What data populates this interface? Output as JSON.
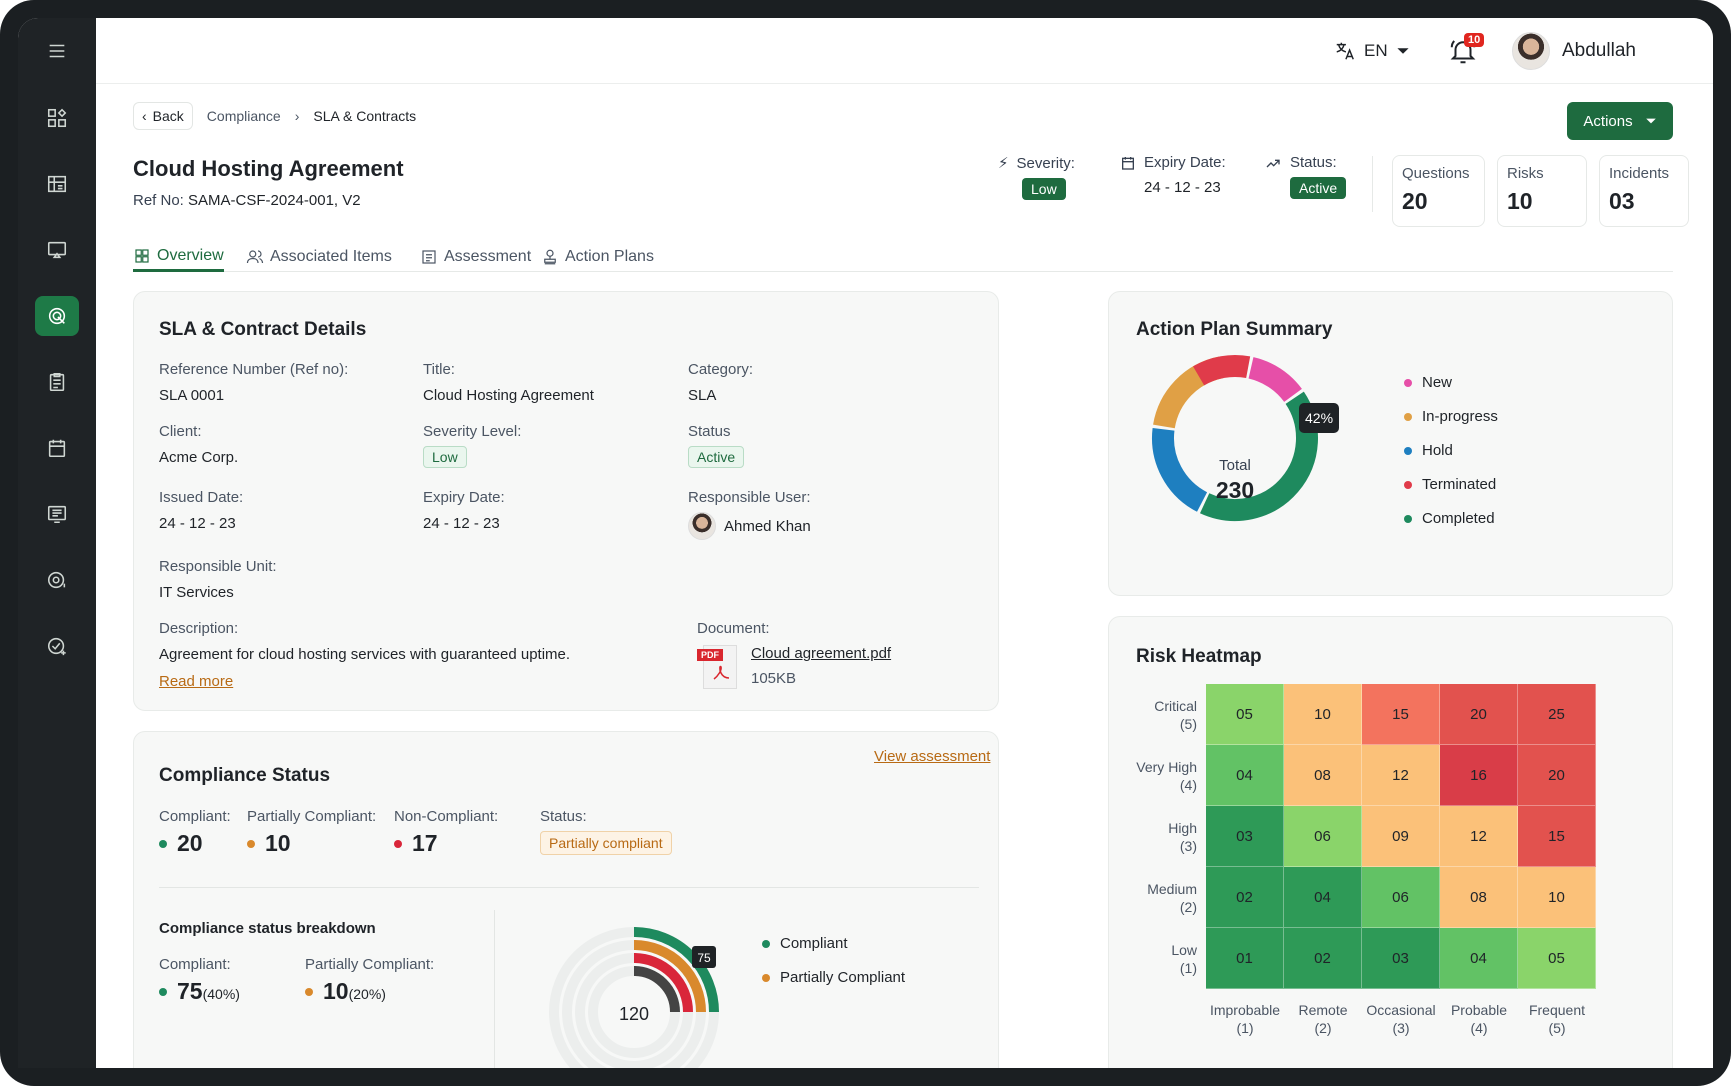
{
  "header": {
    "lang": "EN",
    "notifications": "10",
    "user_name": "Abdullah"
  },
  "breadcrumb": {
    "back": "Back",
    "parent": "Compliance",
    "current": "SLA & Contracts"
  },
  "actions_label": "Actions",
  "page": {
    "title": "Cloud Hosting Agreement",
    "ref_label": "Ref No:",
    "ref_value": "SAMA-CSF-2024-001, V2"
  },
  "meta": {
    "severity_label": "Severity:",
    "severity_value": "Low",
    "expiry_label": "Expiry Date:",
    "expiry_value": "24 - 12 - 23",
    "status_label": "Status:",
    "status_value": "Active"
  },
  "stats": [
    {
      "label": "Questions",
      "value": "20"
    },
    {
      "label": "Risks",
      "value": "10"
    },
    {
      "label": "Incidents",
      "value": "03"
    }
  ],
  "tabs": [
    "Overview",
    "Associated Items",
    "Assessment",
    "Action Plans"
  ],
  "details": {
    "title": "SLA & Contract Details",
    "ref_label": "Reference Number (Ref no):",
    "ref_value": "SLA 0001",
    "title_label": "Title:",
    "title_value": "Cloud Hosting Agreement",
    "category_label": "Category:",
    "category_value": "SLA",
    "client_label": "Client:",
    "client_value": "Acme Corp.",
    "severity_label": "Severity Level:",
    "severity_value": "Low",
    "status_label": "Status",
    "status_value": "Active",
    "issued_label": "Issued Date:",
    "issued_value": "24 - 12 - 23",
    "expiry_label": "Expiry Date:",
    "expiry_value": "24 - 12 - 23",
    "resp_user_label": "Responsible User:",
    "resp_user_value": "Ahmed Khan",
    "resp_unit_label": "Responsible Unit:",
    "resp_unit_value": "IT Services",
    "desc_label": "Description:",
    "desc_value": "Agreement for cloud hosting services with guaranteed uptime.",
    "read_more": "Read more",
    "doc_label": "Document:",
    "doc_name": "Cloud agreement.pdf",
    "doc_size": "105KB",
    "doc_badge": "PDF"
  },
  "action_plan": {
    "title": "Action Plan Summary",
    "total_label": "Total",
    "total_value": "230",
    "tooltip": "42%",
    "legend": [
      {
        "name": "New",
        "color": "#e64fa8",
        "share": 0.12
      },
      {
        "name": "In-progress",
        "color": "#e0a045",
        "share": 0.2
      },
      {
        "name": "Hold",
        "color": "#1e7fc0",
        "share": 0.2
      },
      {
        "name": "Terminated",
        "color": "#e03b4a",
        "share": 0.12
      },
      {
        "name": "Completed",
        "color": "#1e8a5e",
        "share": 0.42
      }
    ]
  },
  "heatmap": {
    "title": "Risk Heatmap",
    "rows": [
      {
        "label": "Critical",
        "sub": "(5)"
      },
      {
        "label": "Very High",
        "sub": "(4)"
      },
      {
        "label": "High",
        "sub": "(3)"
      },
      {
        "label": "Medium",
        "sub": "(2)"
      },
      {
        "label": "Low",
        "sub": "(1)"
      }
    ],
    "cols": [
      {
        "label": "Improbable",
        "sub": "(1)"
      },
      {
        "label": "Remote",
        "sub": "(2)"
      },
      {
        "label": "Occasional",
        "sub": "(3)"
      },
      {
        "label": "Probable",
        "sub": "(4)"
      },
      {
        "label": "Frequent",
        "sub": "(5)"
      }
    ],
    "values": [
      [
        "05",
        "10",
        "15",
        "20",
        "25"
      ],
      [
        "04",
        "08",
        "12",
        "16",
        "20"
      ],
      [
        "03",
        "06",
        "09",
        "12",
        "15"
      ],
      [
        "02",
        "04",
        "06",
        "08",
        "10"
      ],
      [
        "01",
        "02",
        "03",
        "04",
        "05"
      ]
    ],
    "colors": [
      [
        "#8ad46a",
        "#fbc179",
        "#f3735e",
        "#e2524e",
        "#e2524e"
      ],
      [
        "#62c265",
        "#fbc179",
        "#fbc179",
        "#d93d48",
        "#e2524e"
      ],
      [
        "#2e9a57",
        "#8ad46a",
        "#fbc179",
        "#fbc179",
        "#e2524e"
      ],
      [
        "#2e9a57",
        "#2e9a57",
        "#62c265",
        "#fbc179",
        "#fbc179"
      ],
      [
        "#2e9a57",
        "#2e9a57",
        "#2e9a57",
        "#62c265",
        "#8ad46a"
      ]
    ]
  },
  "compliance": {
    "title": "Compliance Status",
    "view_link": "View assessment",
    "compliant_label": "Compliant:",
    "compliant_value": "20",
    "partial_label": "Partially Compliant:",
    "partial_value": "10",
    "non_label": "Non-Compliant:",
    "non_value": "17",
    "status_label": "Status:",
    "status_value": "Partially compliant",
    "breakdown_title": "Compliance status breakdown",
    "b_compliant_label": "Compliant:",
    "b_compliant_value": "75",
    "b_compliant_pct": "(40%)",
    "b_partial_label": "Partially Compliant:",
    "b_partial_value": "10",
    "b_partial_pct": "(20%)",
    "chart_center": "120",
    "chart_tooltip": "75",
    "legend": [
      "Compliant",
      "Partially Compliant"
    ]
  },
  "colors": {
    "brand": "#1e6b3f",
    "green": "#1e8a5e",
    "amber": "#d9892c",
    "red": "#d9263a"
  }
}
